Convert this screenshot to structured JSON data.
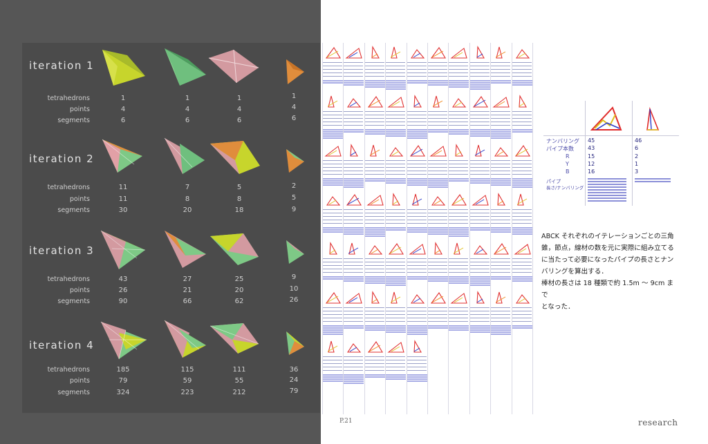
{
  "iterations": [
    {
      "title": "iteration 1",
      "tetrahedrons": [
        "1",
        "1",
        "1",
        "1"
      ],
      "points": [
        "4",
        "4",
        "4",
        "4"
      ],
      "segments": [
        "6",
        "6",
        "6",
        "6"
      ]
    },
    {
      "title": "iteration 2",
      "tetrahedrons": [
        "11",
        "7",
        "5",
        "2"
      ],
      "points": [
        "11",
        "8",
        "8",
        "5"
      ],
      "segments": [
        "30",
        "20",
        "18",
        "9"
      ]
    },
    {
      "title": "iteration 3",
      "tetrahedrons": [
        "43",
        "27",
        "25",
        "9"
      ],
      "points": [
        "26",
        "21",
        "20",
        "10"
      ],
      "segments": [
        "90",
        "66",
        "62",
        "26"
      ]
    },
    {
      "title": "iteration 4",
      "tetrahedrons": [
        "185",
        "115",
        "111",
        "36"
      ],
      "points": [
        "79",
        "59",
        "55",
        "24"
      ],
      "segments": [
        "324",
        "223",
        "212",
        "79"
      ]
    }
  ],
  "labels": {
    "tetrahedrons": "tetrahedrons",
    "points": "points",
    "segments": "segments"
  },
  "footer": {
    "page": "P.21",
    "section": "research"
  },
  "detail": {
    "row_numbering": "ナンバリング",
    "row_pipes": "パイプ本数",
    "row_r": "R",
    "row_y": "Y",
    "row_b": "B",
    "row_pipe_len": "パイプ",
    "row_pipe_len2": "長さ/ナンバリング",
    "col1": {
      "numbering": "45",
      "pipes": "43",
      "r": "15",
      "y": "12",
      "b": "16"
    },
    "col2": {
      "numbering": "46",
      "pipes": "6",
      "r": "2",
      "y": "1",
      "b": "3"
    }
  },
  "description": {
    "line1": "ABCK それぞれのイテレーションごとの三角",
    "line2": "錐，節点，線材の数を元に実際に組み立てる",
    "line3": "に当たって必要になったパイプの長さとナン",
    "line4": "バリングを算出する．",
    "line5": "棒材の長さは 18 種類で約 1.5m 〜 9cm まで",
    "line6": "となった．"
  }
}
